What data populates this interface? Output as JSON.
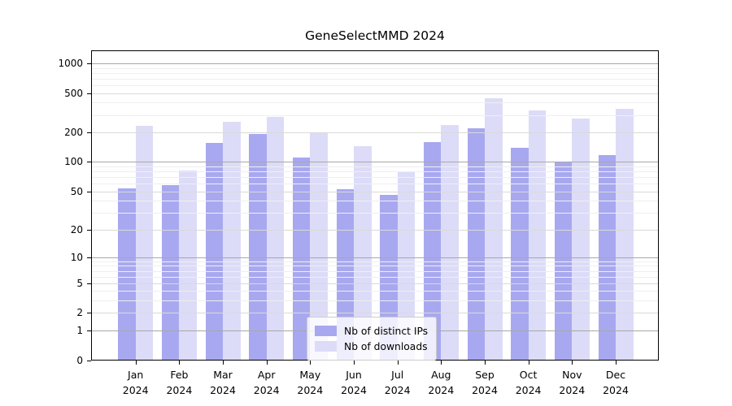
{
  "title": "GeneSelectMMD 2024",
  "colors": {
    "distinct_ips_bar": "#a8a8f0",
    "downloads_bar": "#dcdcf8",
    "grid_major": "#a8a8a8",
    "grid_mid": "#d9d9d9",
    "grid_minor": "#efefef",
    "axis": "#000000"
  },
  "legend": {
    "items": [
      {
        "label": "Nb of distinct IPs",
        "color": "#a8a8f0"
      },
      {
        "label": "Nb of downloads",
        "color": "#dcdcf8"
      }
    ]
  },
  "chart_data": {
    "type": "bar",
    "title": "GeneSelectMMD 2024",
    "categories": [
      "Jan 2024",
      "Feb 2024",
      "Mar 2024",
      "Apr 2024",
      "May 2024",
      "Jun 2024",
      "Jul 2024",
      "Aug 2024",
      "Sep 2024",
      "Oct 2024",
      "Nov 2024",
      "Dec 2024"
    ],
    "series": [
      {
        "name": "Nb of distinct IPs",
        "color": "#a8a8f0",
        "values": [
          54,
          58,
          155,
          194,
          110,
          53,
          46,
          158,
          218,
          140,
          101,
          117
        ]
      },
      {
        "name": "Nb of downloads",
        "color": "#dcdcf8",
        "values": [
          235,
          82,
          255,
          285,
          197,
          145,
          80,
          238,
          440,
          333,
          274,
          349
        ]
      }
    ],
    "xlabel": "",
    "ylabel": "",
    "yscale": "log1p",
    "ylim": [
      0,
      1350
    ],
    "y_ticks": [
      0,
      1,
      2,
      5,
      10,
      20,
      50,
      100,
      200,
      500,
      1000
    ],
    "y_major_gridlines": [
      1,
      10,
      100,
      1000
    ],
    "y_minor_gridlines": [
      3,
      4,
      6,
      7,
      8,
      9,
      30,
      40,
      60,
      70,
      80,
      90,
      300,
      400,
      600,
      700,
      800,
      900
    ],
    "grid": true,
    "legend_position": "bottom-center"
  }
}
